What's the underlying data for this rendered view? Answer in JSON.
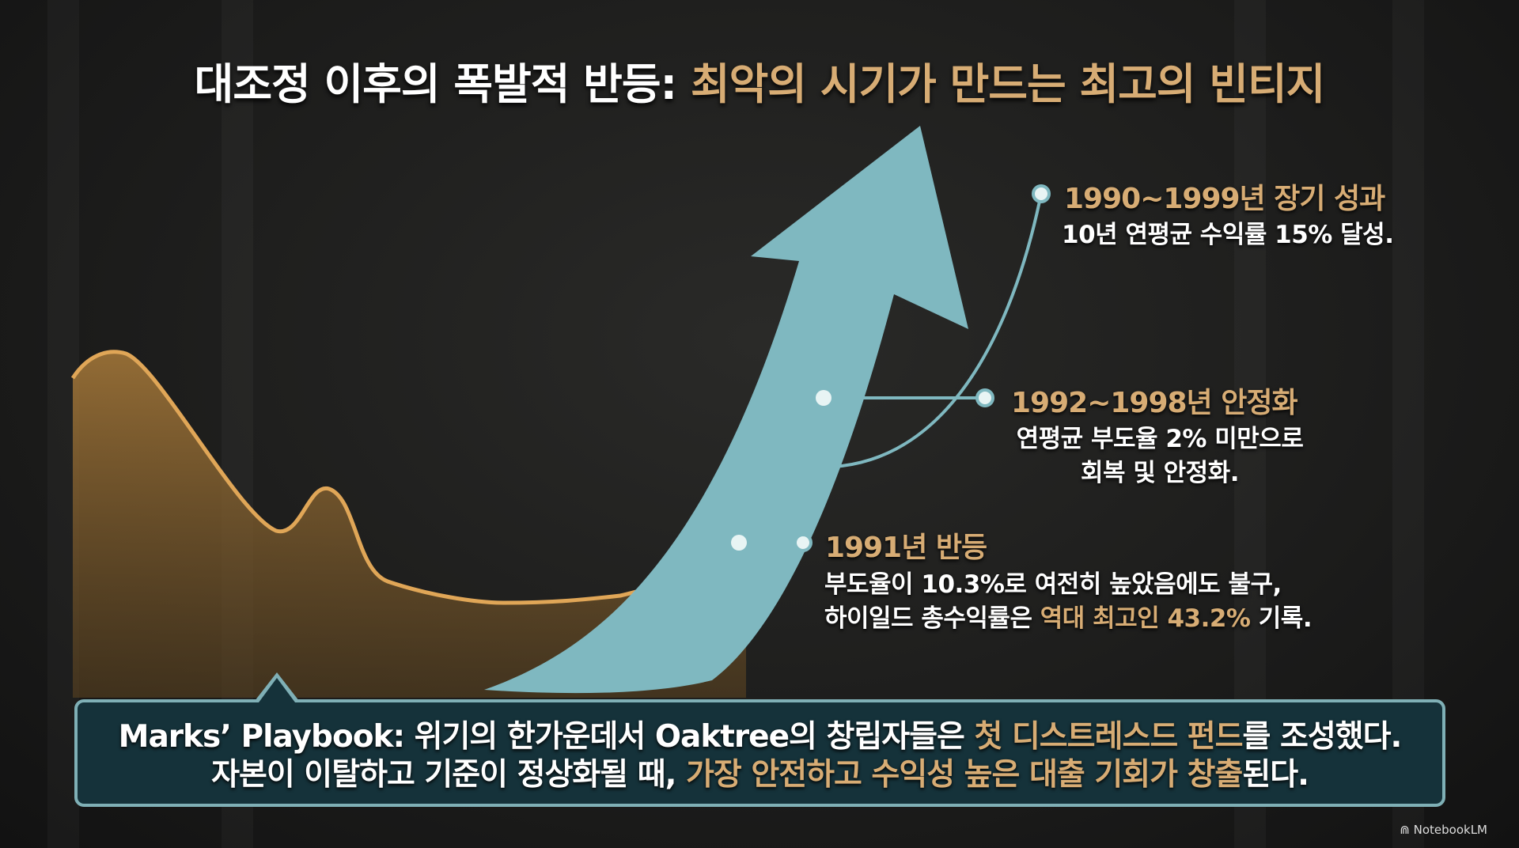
{
  "title": {
    "part1": "대조정 이후의 폭발적 반등: ",
    "part2": "최악의 시기가 만드는 최고의 빈티지"
  },
  "colors": {
    "gold": "#d7ac74",
    "teal": "#7fb8c0",
    "box_bg": "#15323a",
    "box_border": "#7fb0b6"
  },
  "milestones": [
    {
      "heading": "1990~1999년 장기 성과",
      "desc": [
        "10년 연평균 수익률 15% 달성."
      ]
    },
    {
      "heading": "1992~1998년 안정화",
      "desc": [
        "연평균 부도율 2% 미만으로",
        "회복 및 안정화."
      ]
    },
    {
      "heading": "1991년 반등",
      "desc1": "부도율이 10.3%로 여전히 높았음에도 불구,",
      "desc2_a": "하이일드 총수익률은 ",
      "desc2_b": "역대 최고인 43.2%",
      "desc2_c": " 기록."
    }
  ],
  "callout": {
    "l1_a": "Marks’ Playbook: 위기의 한가운데서 Oaktree의 창립자들은 ",
    "l1_b": "첫 디스트레스드 펀드",
    "l1_c": "를 조성했다.",
    "l2_a": "자본이 이탈하고 기준이 정상화될 때, ",
    "l2_b": "가장 안전하고 수익성 높은 대출 기회가 창출",
    "l2_c": "된다."
  },
  "watermark": "NotebookLM"
}
